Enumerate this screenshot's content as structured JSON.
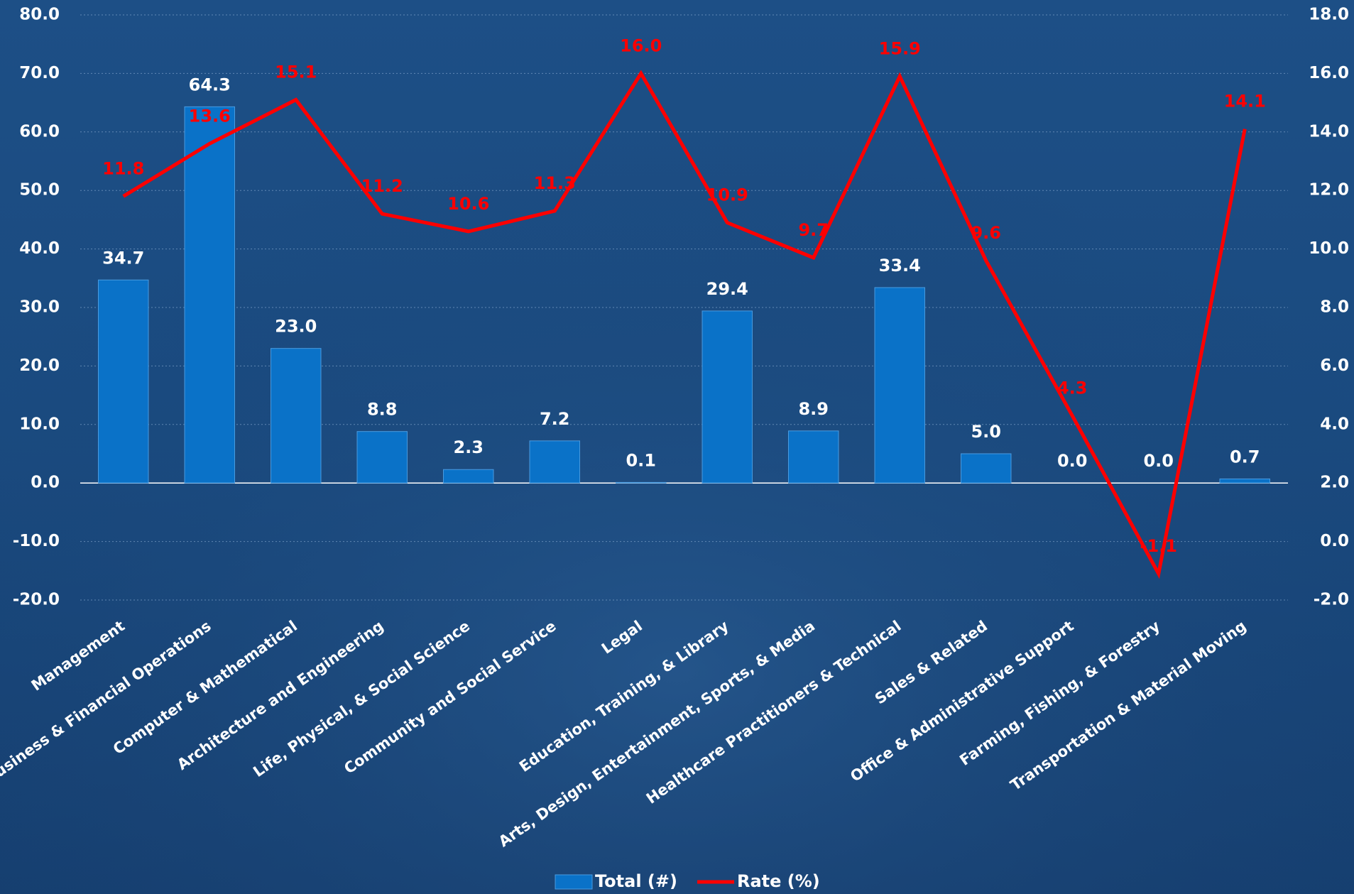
{
  "chart_data": {
    "type": "combo",
    "categories": [
      "Management",
      "Business & Financial Operations",
      "Computer & Mathematical",
      "Architecture and Engineering",
      "Life, Physical, & Social Science",
      "Community and Social Service",
      "Legal",
      "Education, Training, & Library",
      "Arts, Design, Entertainment, Sports, & Media",
      "Healthcare Practitioners & Technical",
      "Sales & Related",
      "Office & Administrative Support",
      "Farming, Fishing, & Forestry",
      "Transportation & Material Moving"
    ],
    "series": [
      {
        "name": "Total (#)",
        "type": "bar",
        "color": "#0a72c8",
        "values": [
          34.7,
          64.3,
          23.0,
          8.8,
          2.3,
          7.2,
          0.1,
          29.4,
          8.9,
          33.4,
          5.0,
          0.0,
          0.0,
          0.7
        ],
        "value_labels": [
          "34.7",
          "64.3",
          "23.0",
          "8.8",
          "2.3",
          "7.2",
          "0.1",
          "29.4",
          "8.9",
          "33.4",
          "5.0",
          "0.0",
          "0.0",
          "0.7"
        ]
      },
      {
        "name": "Rate (%)",
        "type": "line",
        "axis": "y2",
        "color": "#ff0000",
        "values": [
          11.8,
          13.6,
          15.1,
          11.2,
          10.6,
          11.3,
          16.0,
          10.9,
          9.7,
          15.9,
          9.6,
          4.3,
          -1.1,
          14.1
        ],
        "value_labels": [
          "11.8",
          "13.6",
          "15.1",
          "11.2",
          "10.6",
          "11.3",
          "16.0",
          "10.9",
          "9.7",
          "15.9",
          "9.6",
          "4.3",
          "-1.1",
          "14.1"
        ]
      }
    ],
    "ylim": [
      -20,
      80
    ],
    "yticks": [
      {
        "value": -20,
        "label": "-20.0"
      },
      {
        "value": -10,
        "label": "-10.0"
      },
      {
        "value": 0,
        "label": "0.0"
      },
      {
        "value": 10,
        "label": "10.0"
      },
      {
        "value": 20,
        "label": "20.0"
      },
      {
        "value": 30,
        "label": "30.0"
      },
      {
        "value": 40,
        "label": "40.0"
      },
      {
        "value": 50,
        "label": "50.0"
      },
      {
        "value": 60,
        "label": "60.0"
      },
      {
        "value": 70,
        "label": "70.0"
      },
      {
        "value": 80,
        "label": "80.0"
      }
    ],
    "y2lim": [
      -2,
      18
    ],
    "y2ticks": [
      {
        "value": -2,
        "label": "-2.0"
      },
      {
        "value": 0,
        "label": "0.0"
      },
      {
        "value": 2,
        "label": "2.0"
      },
      {
        "value": 4,
        "label": "4.0"
      },
      {
        "value": 6,
        "label": "6.0"
      },
      {
        "value": 8,
        "label": "8.0"
      },
      {
        "value": 10,
        "label": "10.0"
      },
      {
        "value": 12,
        "label": "12.0"
      },
      {
        "value": 14,
        "label": "14.0"
      },
      {
        "value": 16,
        "label": "16.0"
      },
      {
        "value": 18,
        "label": "18.0"
      }
    ],
    "grid": true,
    "legend": "bottom"
  }
}
